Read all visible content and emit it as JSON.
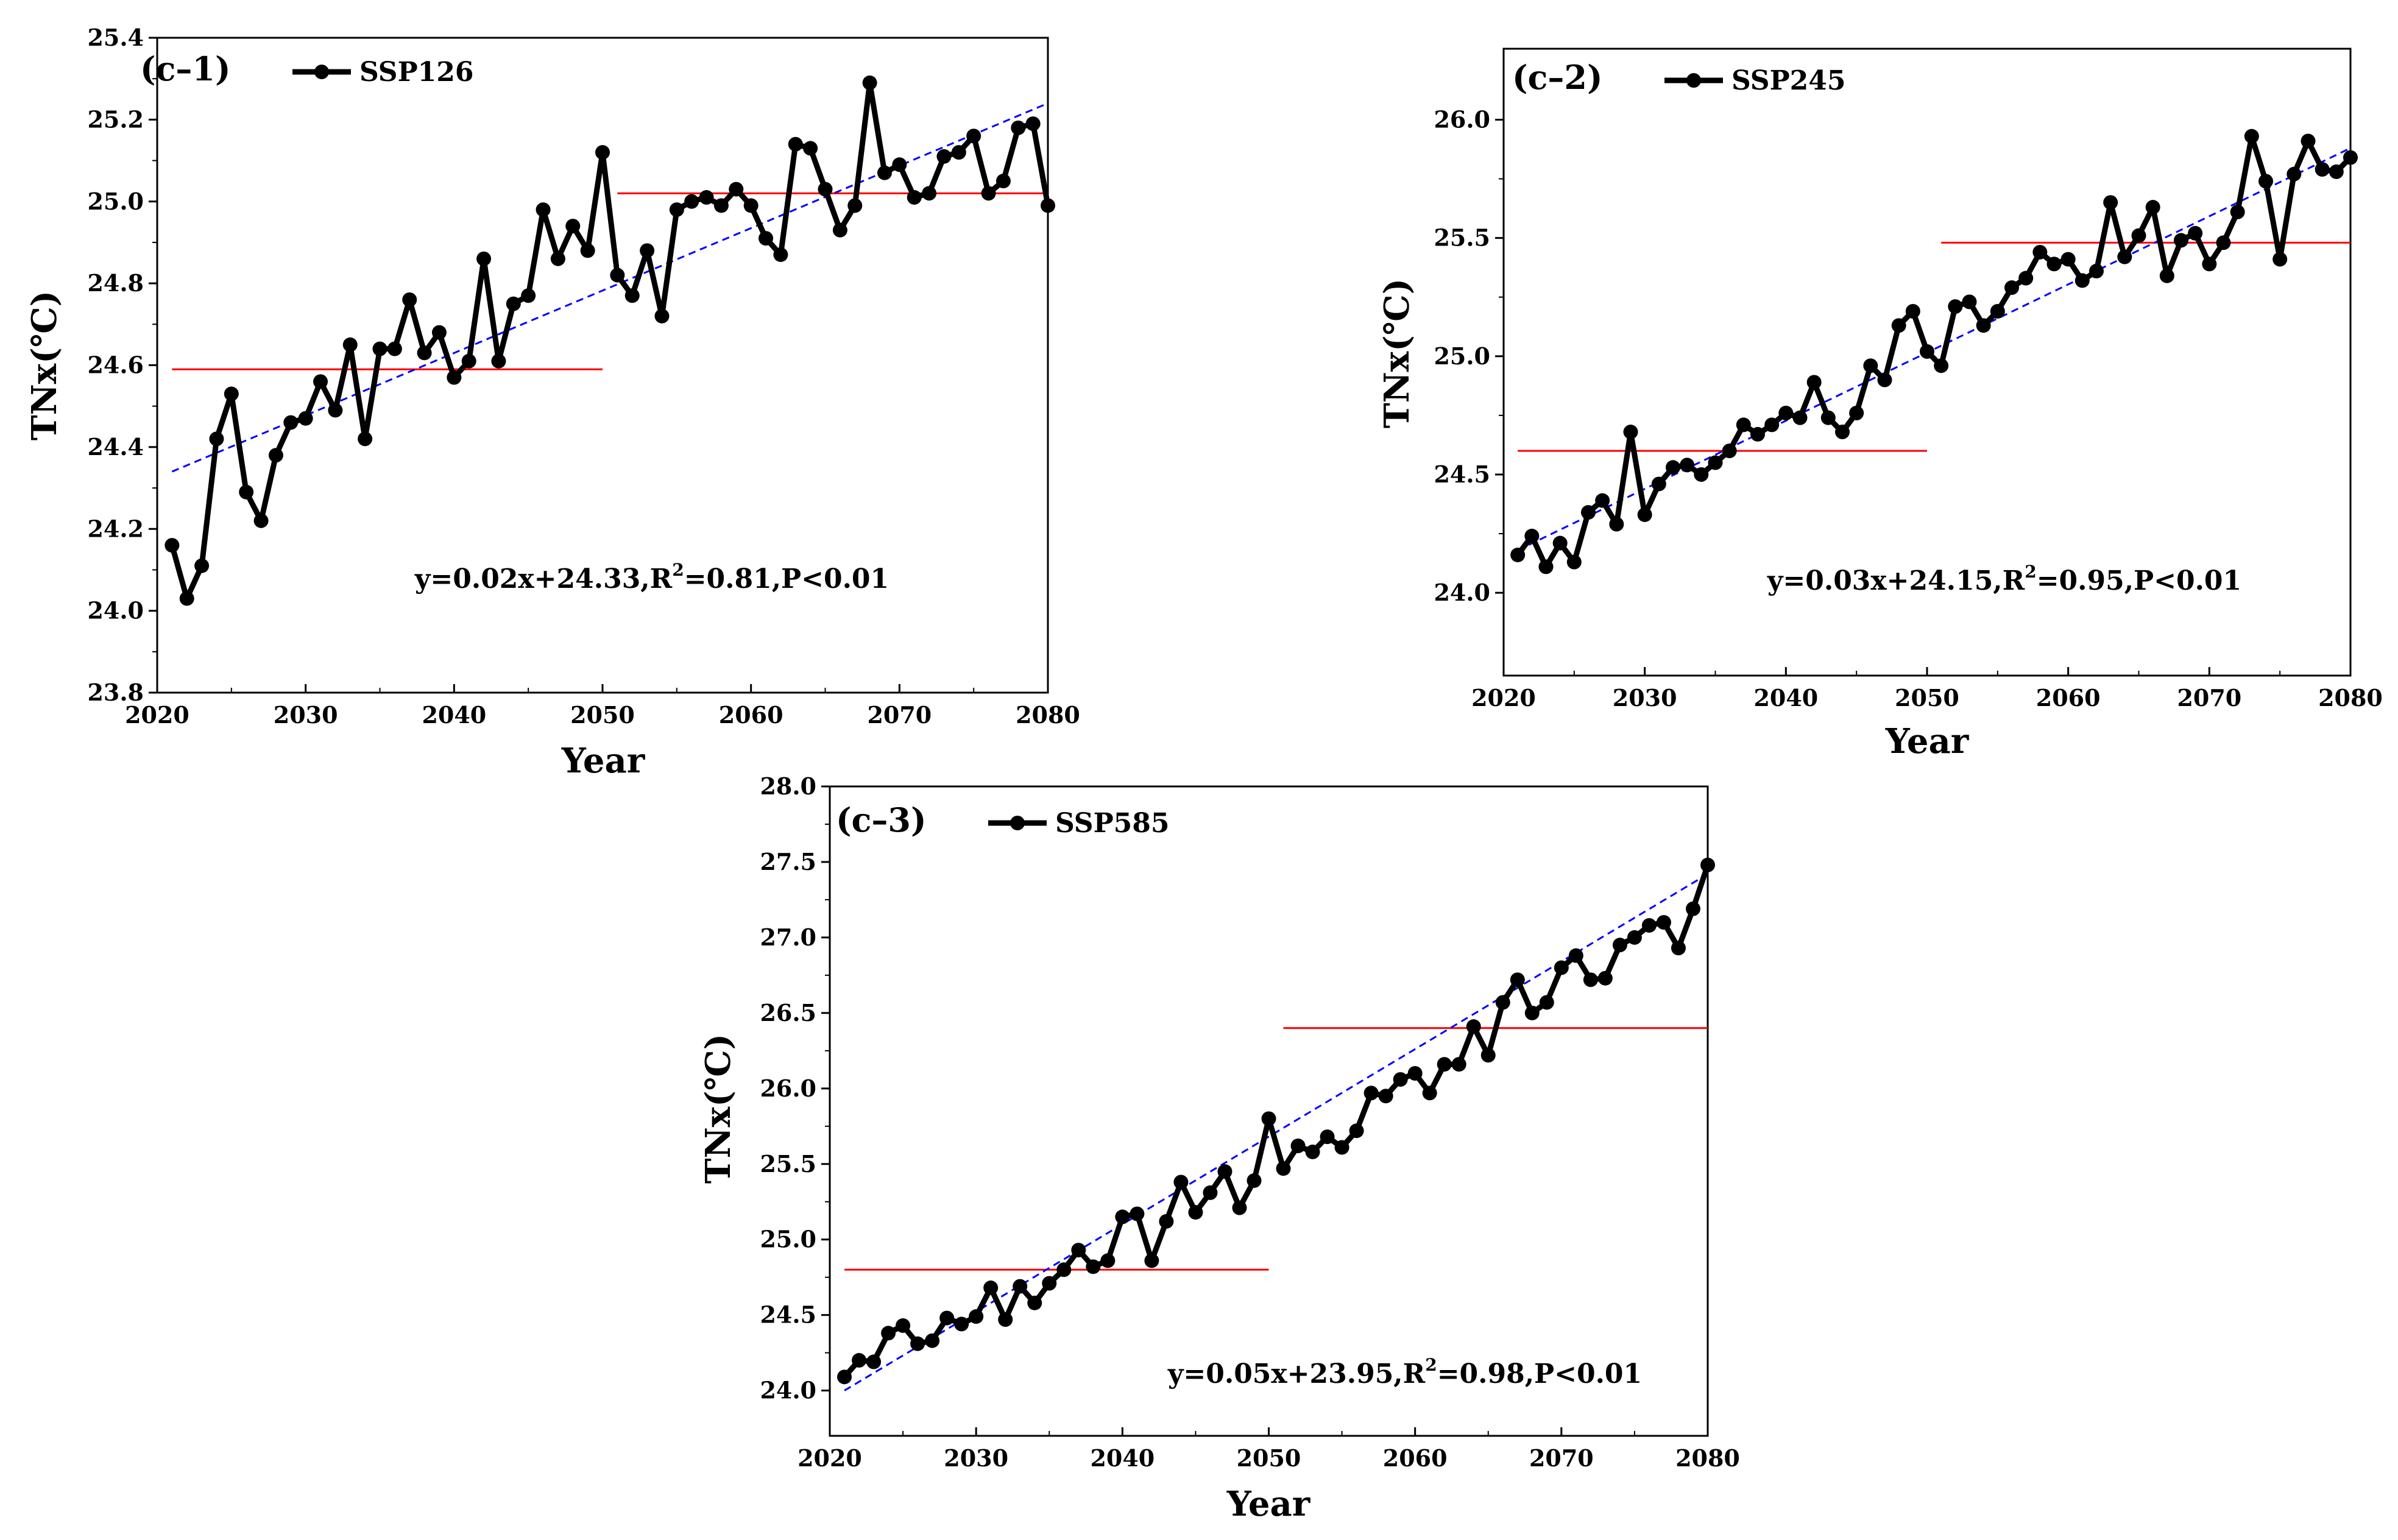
{
  "colors": {
    "series": "#000000",
    "mean_line": "#ff0000",
    "trend_line": "#0000ff"
  },
  "chart_data": [
    {
      "type": "line",
      "panel_label": "(c–1)",
      "legend": "SSP126",
      "xlabel": "Year",
      "ylabel": "TNx(℃)",
      "xlim": [
        2020,
        2080
      ],
      "ylim": [
        23.8,
        25.4
      ],
      "xticks": [
        2020,
        2030,
        2040,
        2050,
        2060,
        2070,
        2080
      ],
      "xtick_labels": [
        "2020",
        "2030",
        "2040",
        "2050",
        "2060",
        "2070",
        "2080"
      ],
      "yticks": [
        23.8,
        24.0,
        24.2,
        24.4,
        24.6,
        24.8,
        25.0,
        25.2,
        25.4
      ],
      "ytick_labels": [
        "23.8",
        "24.0",
        "24.2",
        "24.4",
        "24.6",
        "24.8",
        "25.0",
        "25.2",
        "25.4"
      ],
      "x_start": 2021,
      "values": [
        24.16,
        24.03,
        24.11,
        24.42,
        24.53,
        24.29,
        24.22,
        24.38,
        24.46,
        24.47,
        24.56,
        24.49,
        24.65,
        24.42,
        24.64,
        24.64,
        24.76,
        24.63,
        24.68,
        24.57,
        24.61,
        24.86,
        24.61,
        24.75,
        24.77,
        24.98,
        24.86,
        24.94,
        24.88,
        25.12,
        24.82,
        24.77,
        24.88,
        24.72,
        24.98,
        25.0,
        25.01,
        24.99,
        25.03,
        24.99,
        24.91,
        24.87,
        25.14,
        25.13,
        25.03,
        24.93,
        24.99,
        25.29,
        25.07,
        25.09,
        25.01,
        25.02,
        25.11,
        25.12,
        25.16,
        25.02,
        25.05,
        25.18,
        25.19,
        24.99
      ],
      "mean_lines": [
        {
          "from": 2021,
          "to": 2050,
          "value": 24.59
        },
        {
          "from": 2051,
          "to": 2080,
          "value": 25.02
        }
      ],
      "trend": {
        "from": 2021,
        "to": 2080,
        "y_start": 24.34,
        "y_end": 25.24
      },
      "equation": {
        "main": "y=0.02x+24.33,R",
        "sup": "2",
        "tail": "=0.81,P<0.01"
      }
    },
    {
      "type": "line",
      "panel_label": "(c–2)",
      "legend": "SSP245",
      "xlabel": "Year",
      "ylabel": "TNx(℃)",
      "xlim": [
        2020,
        2080
      ],
      "ylim": [
        23.65,
        26.3
      ],
      "xticks": [
        2020,
        2030,
        2040,
        2050,
        2060,
        2070,
        2080
      ],
      "xtick_labels": [
        "2020",
        "2030",
        "2040",
        "2050",
        "2060",
        "2070",
        "2080"
      ],
      "yticks": [
        24.0,
        24.5,
        25.0,
        25.5,
        26.0
      ],
      "ytick_labels": [
        "24.0",
        "24.5",
        "25.0",
        "25.5",
        "26.0"
      ],
      "x_start": 2021,
      "values": [
        24.16,
        24.24,
        24.11,
        24.21,
        24.13,
        24.34,
        24.39,
        24.29,
        24.68,
        24.33,
        24.46,
        24.53,
        24.54,
        24.5,
        24.55,
        24.6,
        24.71,
        24.67,
        24.71,
        24.76,
        24.74,
        24.89,
        24.74,
        24.68,
        24.76,
        24.96,
        24.9,
        25.13,
        25.19,
        25.02,
        24.96,
        25.21,
        25.23,
        25.13,
        25.19,
        25.29,
        25.33,
        25.44,
        25.39,
        25.41,
        25.32,
        25.36,
        25.65,
        25.42,
        25.51,
        25.63,
        25.34,
        25.49,
        25.52,
        25.39,
        25.48,
        25.61,
        25.93,
        25.74,
        25.41,
        25.77,
        25.91,
        25.79,
        25.78,
        25.84
      ],
      "mean_lines": [
        {
          "from": 2021,
          "to": 2050,
          "value": 24.6
        },
        {
          "from": 2051,
          "to": 2080,
          "value": 25.48
        }
      ],
      "trend": {
        "from": 2021,
        "to": 2080,
        "y_start": 24.18,
        "y_end": 25.88
      },
      "equation": {
        "main": "y=0.03x+24.15,R",
        "sup": "2",
        "tail": "=0.95,P<0.01"
      }
    },
    {
      "type": "line",
      "panel_label": "(c–3)",
      "legend": "SSP585",
      "xlabel": "Year",
      "ylabel": "TNx(℃)",
      "xlim": [
        2020,
        2080
      ],
      "ylim": [
        23.7,
        28.0
      ],
      "xticks": [
        2020,
        2030,
        2040,
        2050,
        2060,
        2070,
        2080
      ],
      "xtick_labels": [
        "2020",
        "2030",
        "2040",
        "2050",
        "2060",
        "2070",
        "2080"
      ],
      "yticks": [
        24.0,
        24.5,
        25.0,
        25.5,
        26.0,
        26.5,
        27.0,
        27.5,
        28.0
      ],
      "ytick_labels": [
        "24.0",
        "24.5",
        "25.0",
        "25.5",
        "26.0",
        "26.5",
        "27.0",
        "27.5",
        "28.0"
      ],
      "x_start": 2021,
      "values": [
        24.09,
        24.2,
        24.19,
        24.38,
        24.43,
        24.31,
        24.33,
        24.48,
        24.44,
        24.49,
        24.68,
        24.47,
        24.69,
        24.58,
        24.71,
        24.8,
        24.93,
        24.82,
        24.86,
        25.15,
        25.17,
        24.86,
        25.12,
        25.38,
        25.18,
        25.31,
        25.45,
        25.21,
        25.39,
        25.8,
        25.47,
        25.62,
        25.58,
        25.68,
        25.61,
        25.72,
        25.97,
        25.95,
        26.06,
        26.1,
        25.97,
        26.16,
        26.16,
        26.41,
        26.22,
        26.57,
        26.72,
        26.5,
        26.57,
        26.8,
        26.88,
        26.72,
        26.73,
        26.95,
        27.0,
        27.08,
        27.1,
        26.93,
        27.19,
        27.48
      ],
      "mean_lines": [
        {
          "from": 2021,
          "to": 2050,
          "value": 24.8
        },
        {
          "from": 2051,
          "to": 2080,
          "value": 26.4
        }
      ],
      "trend": {
        "from": 2021,
        "to": 2080,
        "y_start": 24.0,
        "y_end": 27.42
      },
      "equation": {
        "main": "y=0.05x+23.95,R",
        "sup": "2",
        "tail": "=0.98,P<0.01"
      }
    }
  ]
}
